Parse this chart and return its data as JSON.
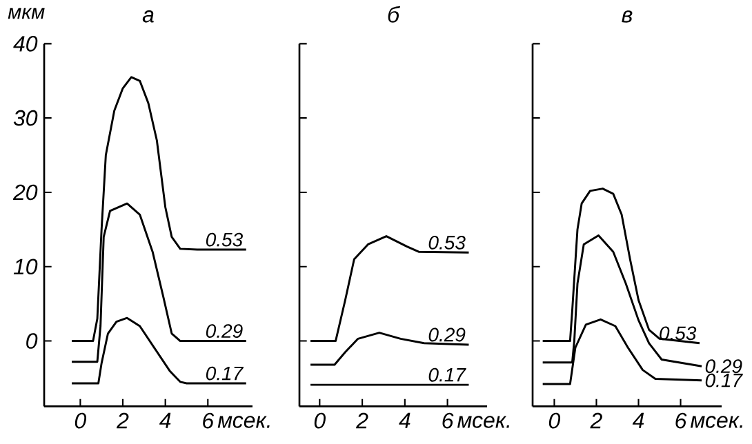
{
  "chart_data": [
    {
      "type": "line",
      "title": "а",
      "xlabel": "мсек.",
      "ylabel": "мкм",
      "xlim": [
        -1.7,
        8.1
      ],
      "ylim": [
        -8.8,
        40
      ],
      "xticks": [
        0,
        2,
        4,
        6
      ],
      "yticks": [
        0,
        10,
        20,
        30,
        40
      ],
      "marker": "none",
      "line_style": "solid",
      "series": [
        {
          "name": "0.53",
          "color": "#000000",
          "x": [
            -0.4,
            0.6,
            0.8,
            1.0,
            1.2,
            1.6,
            2.0,
            2.4,
            2.8,
            3.2,
            3.6,
            4.0,
            4.3,
            4.7,
            5.5,
            7.8
          ],
          "values": [
            0,
            0,
            3,
            15,
            25,
            31,
            34,
            35.5,
            35,
            32,
            27,
            18,
            14,
            12.4,
            12.3,
            12.3
          ]
        },
        {
          "name": "0.29",
          "color": "#000000",
          "x": [
            -0.4,
            0.8,
            0.95,
            1.1,
            1.4,
            2.2,
            2.8,
            3.4,
            3.9,
            4.3,
            4.7,
            7.8
          ],
          "values": [
            -2.8,
            -2.8,
            2,
            14,
            17.5,
            18.5,
            17,
            12,
            6,
            1,
            0,
            0
          ]
        },
        {
          "name": "0.17",
          "color": "#000000",
          "x": [
            -0.4,
            0.85,
            1.0,
            1.3,
            1.7,
            2.2,
            2.8,
            3.5,
            4.2,
            4.7,
            5.0,
            7.8
          ],
          "values": [
            -5.7,
            -5.7,
            -3,
            1,
            2.6,
            3.1,
            2,
            -1,
            -4,
            -5.5,
            -5.7,
            -5.7
          ]
        }
      ]
    },
    {
      "type": "line",
      "title": "б",
      "xlabel": "мсек.",
      "xlim": [
        -0.95,
        7.86
      ],
      "ylim": [
        -8.8,
        40
      ],
      "xticks": [
        0,
        2,
        4,
        6
      ],
      "yticks": [
        0,
        10,
        20,
        30,
        40
      ],
      "tick_labels": "x",
      "marker": "none",
      "line_style": "solid",
      "series": [
        {
          "name": "0.53",
          "color": "#000000",
          "x": [
            -0.43,
            0.75,
            1.2,
            1.62,
            2.27,
            3.13,
            4.1,
            4.65,
            7.0
          ],
          "values": [
            0,
            0,
            5.5,
            11,
            13,
            14.1,
            12.7,
            12,
            11.9
          ]
        },
        {
          "name": "0.29",
          "color": "#000000",
          "x": [
            -0.43,
            0.7,
            1.2,
            1.8,
            2.8,
            3.8,
            4.9,
            7.0
          ],
          "values": [
            -3.2,
            -3.2,
            -1.5,
            0.3,
            1.1,
            0.3,
            -0.3,
            -0.5
          ]
        },
        {
          "name": "0.17",
          "color": "#000000",
          "x": [
            -0.43,
            7.0
          ],
          "values": [
            -5.9,
            -5.9
          ]
        }
      ]
    },
    {
      "type": "line",
      "title": "в",
      "xlabel": "мсек.",
      "xlim": [
        -1.03,
        7.95
      ],
      "ylim": [
        -8.8,
        40
      ],
      "xticks": [
        0,
        2,
        4,
        6
      ],
      "yticks": [
        0,
        10,
        20,
        30,
        40
      ],
      "tick_labels": "x",
      "marker": "none",
      "line_style": "solid",
      "series": [
        {
          "name": "0.53",
          "color": "#000000",
          "x": [
            -0.55,
            0.75,
            0.85,
            1.1,
            1.3,
            1.7,
            2.3,
            2.8,
            3.2,
            3.6,
            4.0,
            4.5,
            5.0,
            6.9
          ],
          "values": [
            0,
            0,
            4,
            15,
            18.5,
            20.2,
            20.5,
            19.8,
            17,
            11,
            5.5,
            1.5,
            0.3,
            -0.3
          ]
        },
        {
          "name": "0.29",
          "color": "#000000",
          "x": [
            -0.55,
            0.85,
            0.95,
            1.1,
            1.4,
            2.1,
            2.8,
            3.4,
            4.0,
            4.5,
            5.1,
            7.0
          ],
          "values": [
            -2.9,
            -2.9,
            0,
            7.7,
            13,
            14.2,
            12,
            7.7,
            2.8,
            -0.3,
            -2.5,
            -3.4
          ]
        },
        {
          "name": "0.17",
          "color": "#000000",
          "x": [
            -0.55,
            0.75,
            1.0,
            1.5,
            2.2,
            2.9,
            3.5,
            4.2,
            4.8,
            7.0
          ],
          "values": [
            -5.8,
            -5.8,
            -0.9,
            2.2,
            2.9,
            2.0,
            -0.9,
            -3.9,
            -5.1,
            -5.3
          ]
        }
      ]
    }
  ]
}
